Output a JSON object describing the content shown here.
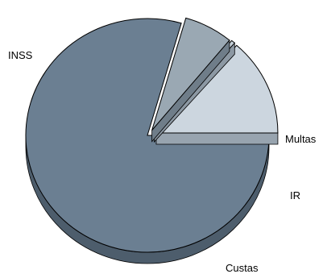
{
  "chart_data": {
    "type": "pie",
    "style": "3d-exploded",
    "title": "",
    "legend": "none",
    "slices": [
      {
        "label": "INSS",
        "value": 79.5,
        "color": "#6b7f92",
        "side_color": "#4d5d6c"
      },
      {
        "label": "Custas",
        "value": 6.5,
        "color": "#9aa8b3",
        "side_color": "#6f7d89"
      },
      {
        "label": "IR",
        "value": 0.5,
        "color": "#c5d0d9",
        "side_color": "#8c98a3"
      },
      {
        "label": "Multas",
        "value": 13.5,
        "color": "#ccd6df",
        "side_color": "#98a4af"
      }
    ]
  }
}
